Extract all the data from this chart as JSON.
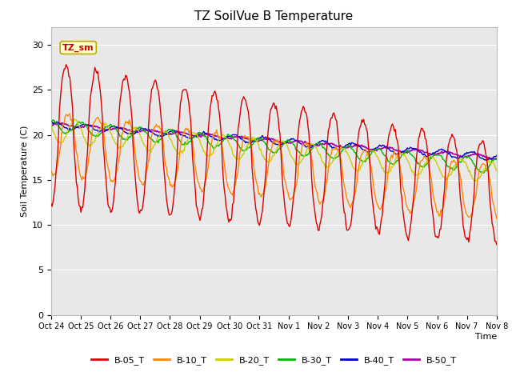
{
  "title": "TZ SoilVue B Temperature",
  "xlabel": "Time",
  "ylabel": "Soil Temperature (C)",
  "ylim": [
    0,
    32
  ],
  "yticks": [
    0,
    5,
    10,
    15,
    20,
    25,
    30
  ],
  "plot_bg_color": "#e8e8e8",
  "fig_bg_color": "#ffffff",
  "grid_color": "#ffffff",
  "legend_labels": [
    "B-05_T",
    "B-10_T",
    "B-20_T",
    "B-30_T",
    "B-40_T",
    "B-50_T"
  ],
  "line_colors": [
    "#dd0000",
    "#ff8800",
    "#cccc00",
    "#00bb00",
    "#0000cc",
    "#aa00aa"
  ],
  "annotation_text": "TZ_sm",
  "annotation_color": "#cc0000",
  "annotation_bg": "#ffffcc",
  "annotation_border": "#bbaa00",
  "tick_labels": [
    "Oct 24",
    "Oct 25",
    "Oct 26",
    "Oct 27",
    "Oct 28",
    "Oct 29",
    "Oct 30",
    "Oct 31",
    "Nov 1",
    "Nov 2",
    "Nov 3",
    "Nov 4",
    "Nov 5",
    "Nov 6",
    "Nov 7",
    "Nov 8"
  ],
  "num_points": 480
}
